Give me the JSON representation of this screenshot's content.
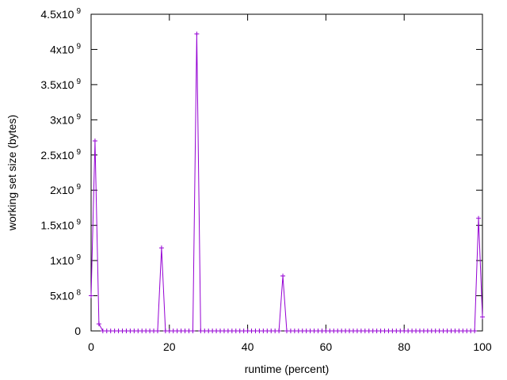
{
  "chart_data": {
    "type": "line",
    "xlabel": "runtime (percent)",
    "ylabel": "working set size (bytes)",
    "xlim": [
      0,
      100
    ],
    "xticks": [
      0,
      20,
      40,
      60,
      80,
      100
    ],
    "ylim": [
      0,
      4500000000
    ],
    "yticks": [
      0,
      {
        "value": 500000000,
        "label": "5x10",
        "exp": "8"
      },
      {
        "value": 1000000000,
        "label": "1x10",
        "exp": "9"
      },
      {
        "value": 1500000000,
        "label": "1.5x10",
        "exp": "9"
      },
      {
        "value": 2000000000,
        "label": "2x10",
        "exp": "9"
      },
      {
        "value": 2500000000,
        "label": "2.5x10",
        "exp": "9"
      },
      {
        "value": 3000000000,
        "label": "3x10",
        "exp": "9"
      },
      {
        "value": 3500000000,
        "label": "3.5x10",
        "exp": "9"
      },
      {
        "value": 4000000000,
        "label": "4x10",
        "exp": "9"
      },
      {
        "value": 4500000000,
        "label": "4.5x10",
        "exp": "9"
      }
    ],
    "x": [
      0,
      1,
      2,
      3,
      4,
      5,
      6,
      7,
      8,
      9,
      10,
      11,
      12,
      13,
      14,
      15,
      16,
      17,
      18,
      19,
      20,
      21,
      22,
      23,
      24,
      25,
      26,
      27,
      28,
      29,
      30,
      31,
      32,
      33,
      34,
      35,
      36,
      37,
      38,
      39,
      40,
      41,
      42,
      43,
      44,
      45,
      46,
      47,
      48,
      49,
      50,
      51,
      52,
      53,
      54,
      55,
      56,
      57,
      58,
      59,
      60,
      61,
      62,
      63,
      64,
      65,
      66,
      67,
      68,
      69,
      70,
      71,
      72,
      73,
      74,
      75,
      76,
      77,
      78,
      79,
      80,
      81,
      82,
      83,
      84,
      85,
      86,
      87,
      88,
      89,
      90,
      91,
      92,
      93,
      94,
      95,
      96,
      97,
      98,
      99,
      100
    ],
    "series": [
      {
        "color": "#9400d3",
        "values": [
          500000000,
          2700000000,
          100000000,
          0,
          0,
          0,
          0,
          0,
          0,
          0,
          0,
          0,
          0,
          0,
          0,
          0,
          0,
          0,
          1180000000,
          0,
          0,
          0,
          0,
          0,
          0,
          0,
          0,
          4220000000,
          0,
          0,
          0,
          0,
          0,
          0,
          0,
          0,
          0,
          0,
          0,
          0,
          0,
          0,
          0,
          0,
          0,
          0,
          0,
          0,
          0,
          780000000,
          0,
          0,
          0,
          0,
          0,
          0,
          0,
          0,
          0,
          0,
          0,
          0,
          0,
          0,
          0,
          0,
          0,
          0,
          0,
          0,
          0,
          0,
          0,
          0,
          0,
          0,
          0,
          0,
          0,
          0,
          0,
          0,
          0,
          0,
          0,
          0,
          0,
          0,
          0,
          0,
          0,
          0,
          0,
          0,
          0,
          0,
          0,
          0,
          0,
          1600000000,
          200000000
        ]
      }
    ]
  }
}
